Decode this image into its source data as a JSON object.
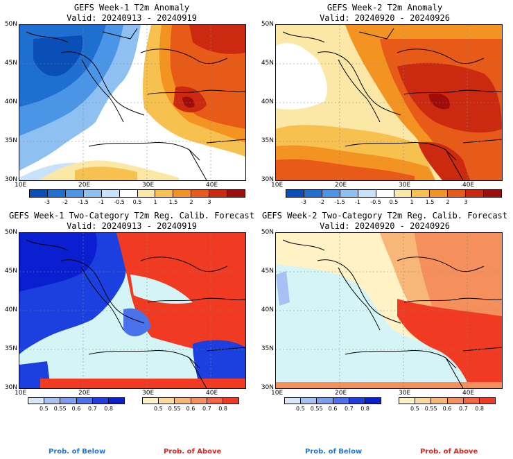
{
  "panels": [
    {
      "title": "GEFS Week-1 T2m Anomaly",
      "valid": "Valid: 20240913 - 20240919"
    },
    {
      "title": "GEFS Week-2 T2m Anomaly",
      "valid": "Valid: 20240920 - 20240926"
    },
    {
      "title": "GEFS Week-1 Two-Category T2m Reg. Calib. Forecast",
      "valid": "Valid: 20240913 - 20240919"
    },
    {
      "title": "GEFS Week-2 Two-Category T2m Reg. Calib. Forecast",
      "valid": "Valid: 20240920 - 20240926"
    }
  ],
  "axes": {
    "lat_labels": [
      "50N",
      "45N",
      "40N",
      "35N",
      "30N"
    ],
    "lon_labels": [
      "10E",
      "20E",
      "30E",
      "40E"
    ]
  },
  "anomaly_scale": {
    "labels": [
      "-3",
      "-2",
      "-1.5",
      "-1",
      "-0.5",
      "0.5",
      "1",
      "1.5",
      "2",
      "3"
    ],
    "colors": [
      "#0a4fb8",
      "#1f6fd1",
      "#4a95e6",
      "#8ec1f2",
      "#c8e2fb",
      "#ffffff",
      "#fbe8a6",
      "#f7c14f",
      "#f39422",
      "#e85a18",
      "#cc2a10",
      "#9e0c0c"
    ]
  },
  "prob_scale": {
    "below_labels": [
      "0.5",
      "0.55",
      "0.6",
      "0.7",
      "0.8"
    ],
    "below_colors": [
      "#dbe6fb",
      "#a8c1f5",
      "#7b9ef0",
      "#4a72ea",
      "#1c3fe0",
      "#0a1fd0"
    ],
    "above_labels": [
      "0.5",
      "0.55",
      "0.6",
      "0.7",
      "0.8"
    ],
    "above_colors": [
      "#fff2c4",
      "#fbd99a",
      "#f8b678",
      "#f58f5b",
      "#f3663f",
      "#f03a22"
    ]
  },
  "legend_text": {
    "below": "Prob. of Below",
    "above": "Prob. of Above",
    "below_color": "#1f78d8",
    "above_color": "#e0231b"
  }
}
